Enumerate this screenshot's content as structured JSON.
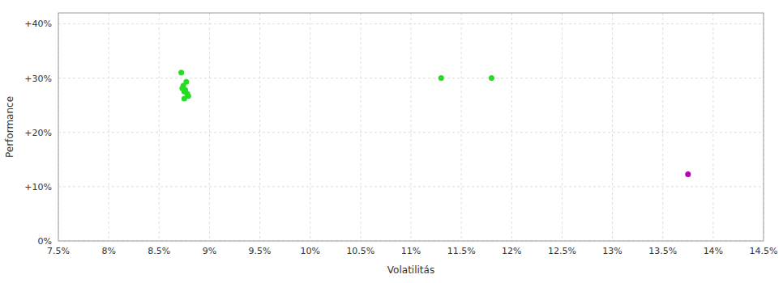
{
  "chart_data": {
    "type": "scatter",
    "xlabel": "Volatilitás",
    "ylabel": "Performance",
    "xlim": [
      0.075,
      0.145
    ],
    "ylim": [
      0.0,
      0.42
    ],
    "xticks": [
      {
        "value": 0.075,
        "label": "7.5%"
      },
      {
        "value": 0.08,
        "label": "8%"
      },
      {
        "value": 0.085,
        "label": "8.5%"
      },
      {
        "value": 0.09,
        "label": "9%"
      },
      {
        "value": 0.095,
        "label": "9.5%"
      },
      {
        "value": 0.1,
        "label": "10%"
      },
      {
        "value": 0.105,
        "label": "10.5%"
      },
      {
        "value": 0.11,
        "label": "11%"
      },
      {
        "value": 0.115,
        "label": "11.5%"
      },
      {
        "value": 0.12,
        "label": "12%"
      },
      {
        "value": 0.125,
        "label": "12.5%"
      },
      {
        "value": 0.13,
        "label": "13%"
      },
      {
        "value": 0.135,
        "label": "13.5%"
      },
      {
        "value": 0.14,
        "label": "14%"
      },
      {
        "value": 0.145,
        "label": "14.5%"
      }
    ],
    "yticks": [
      {
        "value": 0.0,
        "label": "0%"
      },
      {
        "value": 0.1,
        "label": "+10%"
      },
      {
        "value": 0.2,
        "label": "+20%"
      },
      {
        "value": 0.3,
        "label": "+30%"
      },
      {
        "value": 0.4,
        "label": "+40%"
      }
    ],
    "grid": true,
    "series": [
      {
        "color": "#22dd22",
        "x": [
          0.0872,
          0.0877,
          0.0874,
          0.0873,
          0.0876,
          0.0875,
          0.0878,
          0.0879,
          0.0875,
          0.113,
          0.118
        ],
        "values": [
          0.31,
          0.293,
          0.286,
          0.281,
          0.278,
          0.275,
          0.271,
          0.267,
          0.262,
          0.3,
          0.3
        ]
      },
      {
        "color": "#bb00bb",
        "x": [
          0.1375
        ],
        "values": [
          0.123
        ]
      }
    ]
  }
}
